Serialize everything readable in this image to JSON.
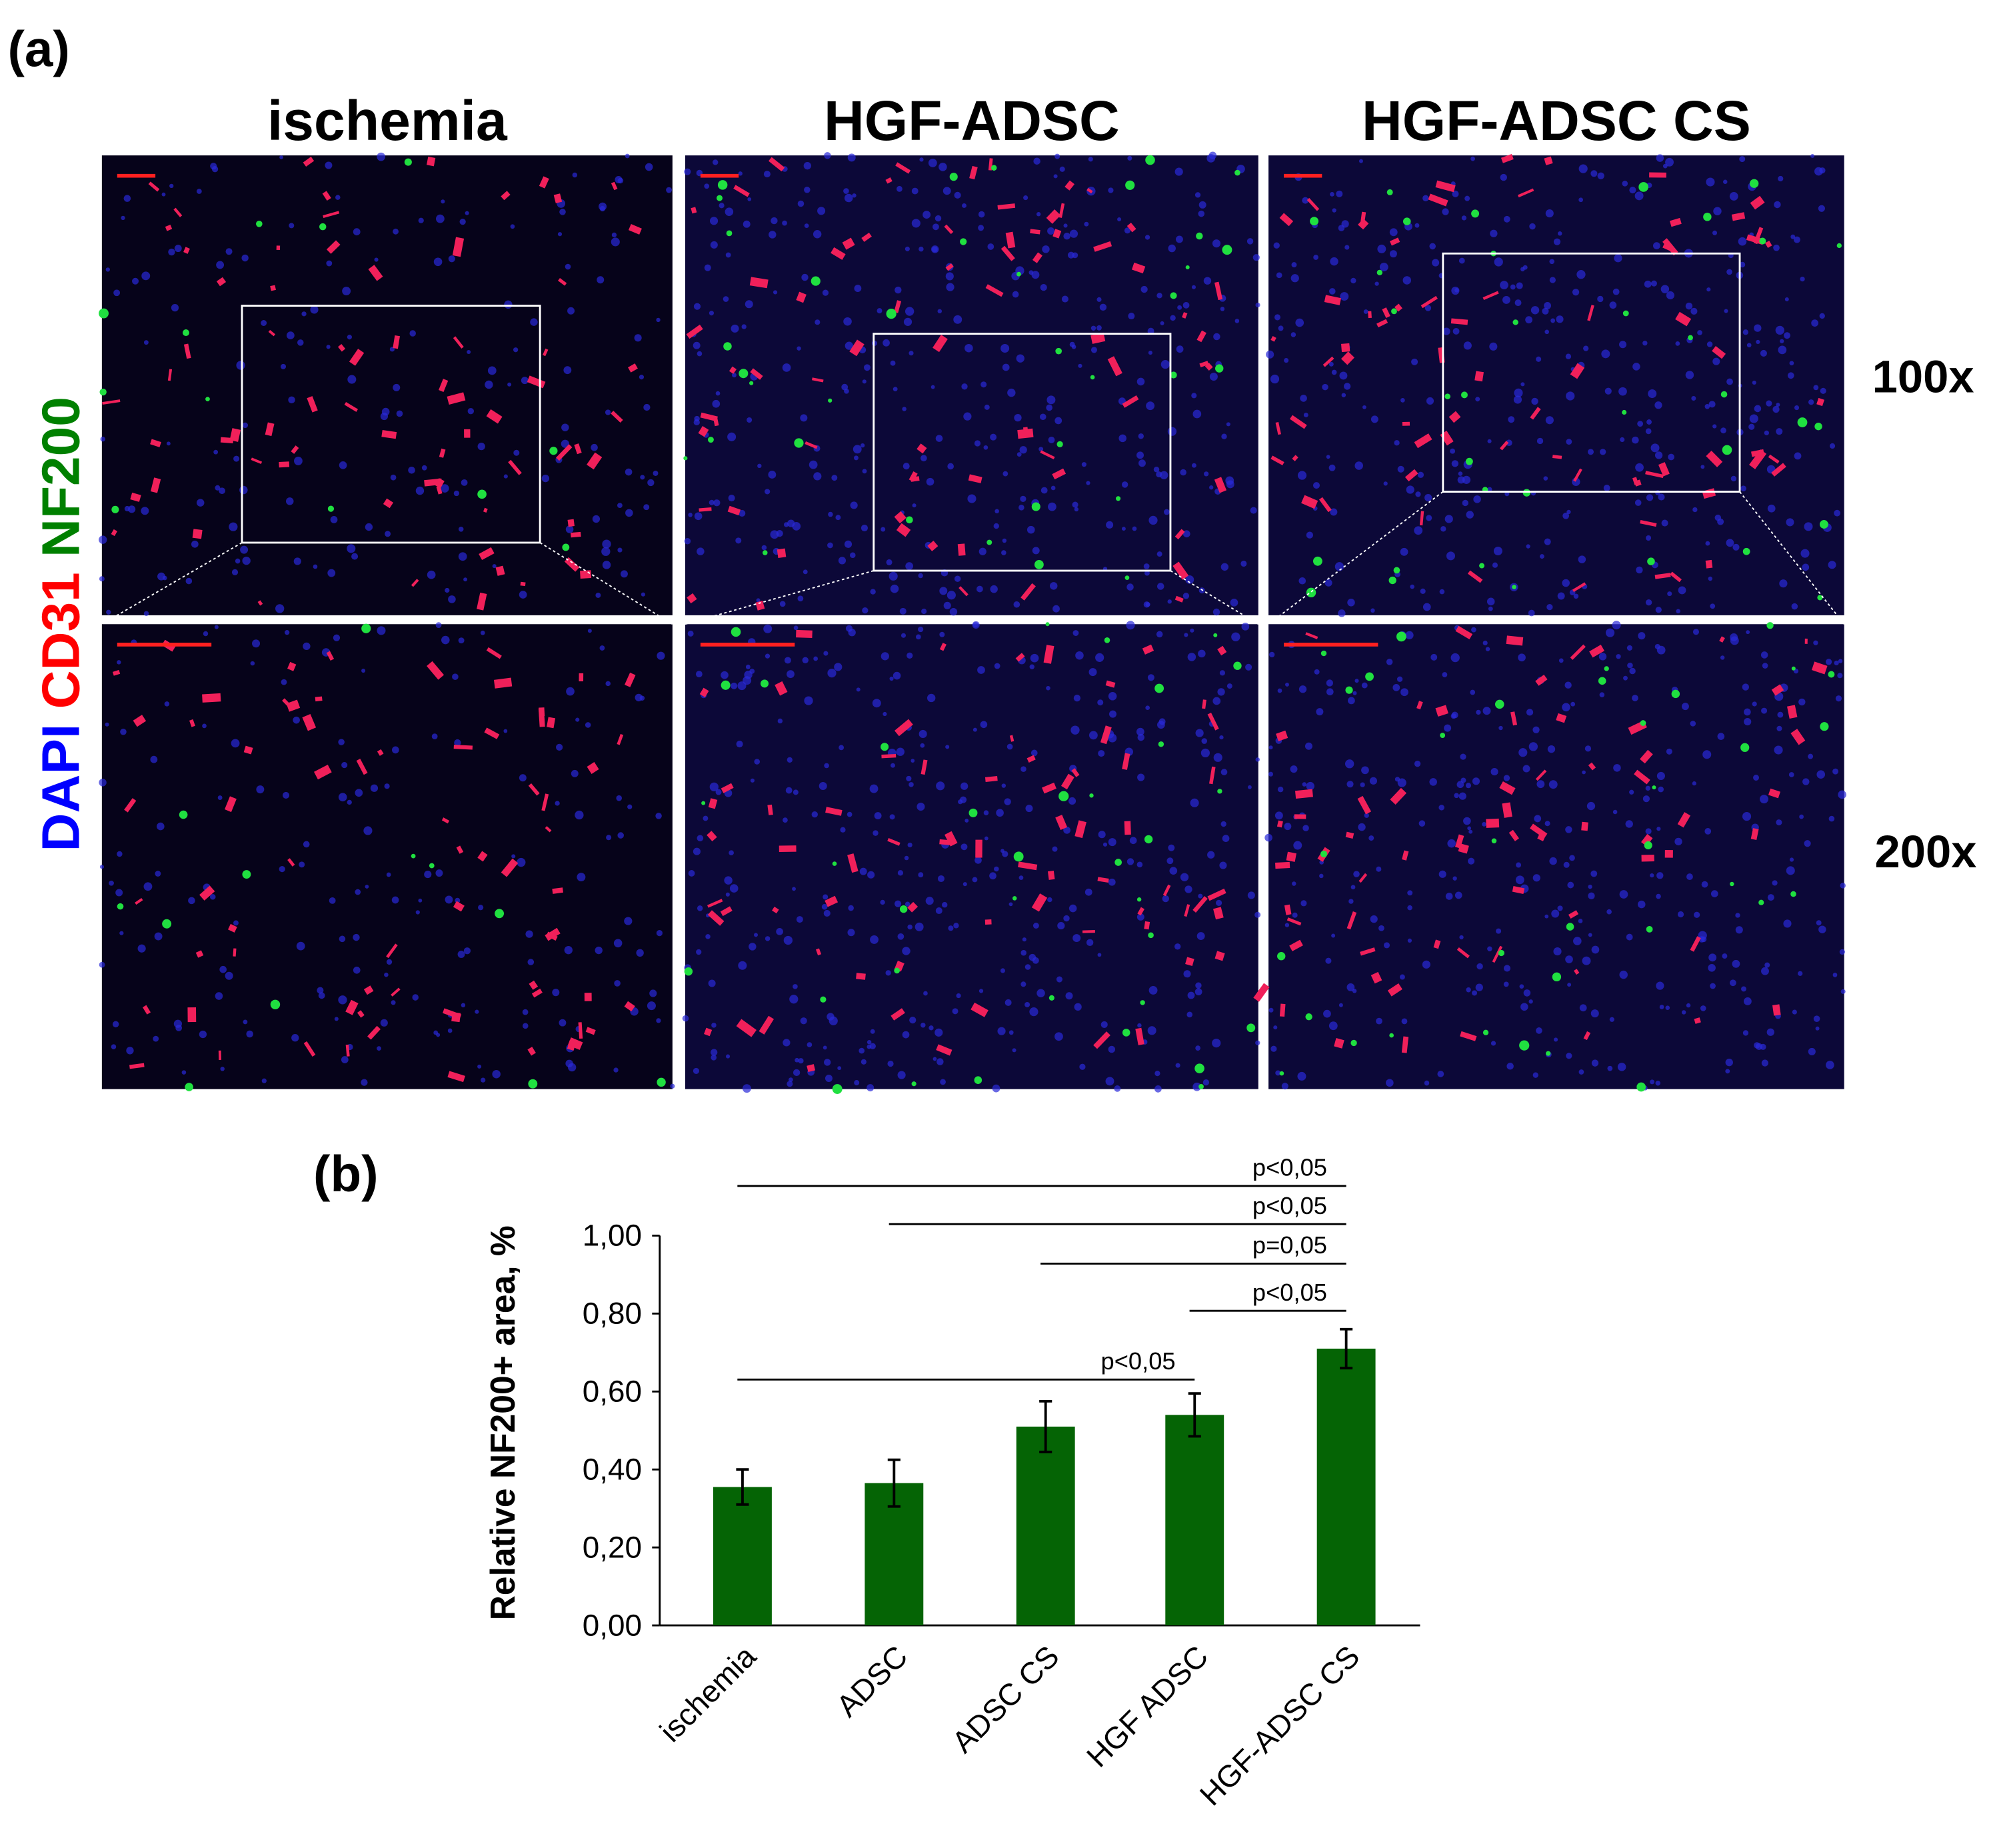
{
  "figure_a": {
    "panel_label": "(a)",
    "columns": [
      "ischemia",
      "HGF-ADSC",
      "HGF-ADSC CS"
    ],
    "rows": [
      "100x",
      "200x"
    ],
    "stains": [
      {
        "text": "DAPI",
        "color": "#0000ff"
      },
      {
        "text": "CD31",
        "color": "#ff0000"
      },
      {
        "text": "NF200",
        "color": "#008000"
      }
    ]
  },
  "chart_data": {
    "type": "bar",
    "panel_label": "(b)",
    "y_label": "Relative NF200+ area, %",
    "categories": [
      "ischemia",
      "ADSC",
      "ADSC CS",
      "HGF ADSC",
      "HGF-ADSC CS"
    ],
    "values": [
      0.355,
      0.365,
      0.51,
      0.54,
      0.71
    ],
    "errors": [
      0.045,
      0.06,
      0.065,
      0.055,
      0.05
    ],
    "color": "#056405",
    "ylim": [
      0,
      1
    ],
    "yticks": [
      {
        "value": 0,
        "label": "0,00"
      },
      {
        "value": 0.2,
        "label": "0,20"
      },
      {
        "value": 0.4,
        "label": "0,40"
      },
      {
        "value": 0.6,
        "label": "0,60"
      },
      {
        "value": 0.8,
        "label": "0,80"
      },
      {
        "value": 1,
        "label": "1,00"
      }
    ],
    "annotations": [
      "p<0,05",
      "p<0,05",
      "p=0,05",
      "p<0,05",
      "p<0,05"
    ]
  }
}
